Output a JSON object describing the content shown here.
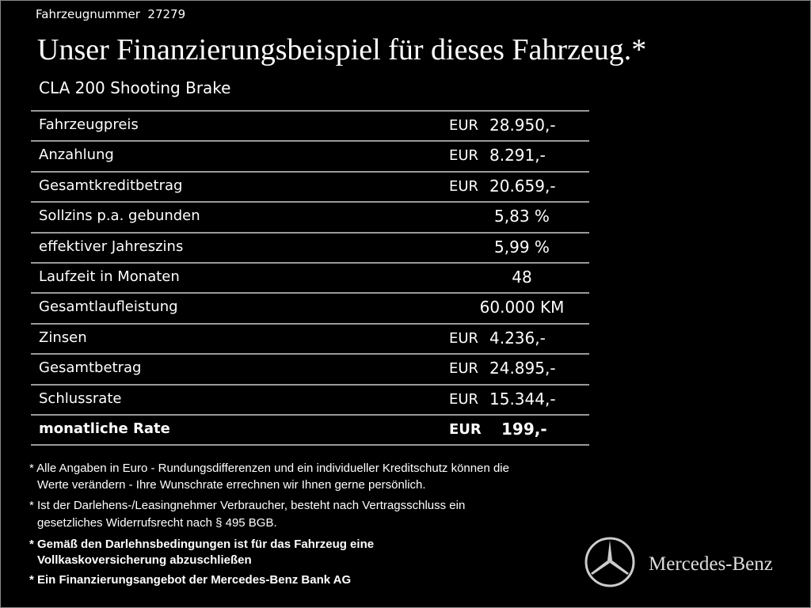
{
  "header": {
    "vehicle_number": "Fahrzeugnummer  27279",
    "title": "Unser Finanzierungsbeispiel für dieses Fahrzeug.*",
    "model": "CLA 200 Shooting Brake"
  },
  "table": {
    "rows": [
      {
        "label": "Fahrzeugpreis",
        "currency": "EUR",
        "value": "28.950,-"
      },
      {
        "label": "Anzahlung",
        "currency": "EUR",
        "value": "8.291,-"
      },
      {
        "label": "Gesamtkreditbetrag",
        "currency": "EUR",
        "value": "20.659,-"
      },
      {
        "label": "Sollzins p.a. gebunden",
        "value": "5,83 %"
      },
      {
        "label": "effektiver Jahreszins",
        "value": "5,99 %"
      },
      {
        "label": "Laufzeit in Monaten",
        "value": "48"
      },
      {
        "label": "Gesamtlaufleistung",
        "value": "60.000 KM"
      },
      {
        "label": "Zinsen",
        "currency": "EUR",
        "value": "4.236,-"
      },
      {
        "label": "Gesamtbetrag",
        "currency": "EUR",
        "value": "24.895,-"
      },
      {
        "label": "Schlussrate",
        "currency": "EUR",
        "value": "15.344,-"
      },
      {
        "label": "monatliche Rate",
        "currency": "EUR",
        "value": "199,-"
      }
    ]
  },
  "notes": [
    {
      "lines": [
        "* Alle Angaben in Euro - Rundungsdifferenzen und ein individueller Kreditschutz können die",
        "Werte verändern - Ihre Wunschrate errechnen wir Ihnen gerne persönlich."
      ]
    },
    {
      "lines": [
        "* Ist der Darlehens-/Leasingnehmer Verbraucher, besteht nach Vertragsschluss ein",
        "gesetzliches Widerrufsrecht nach § 495 BGB."
      ]
    },
    {
      "lines": [
        "* Gemäß den Darlehnsbedingungen ist für das Fahrzeug eine",
        "Vollkaskoversicherung abzuschließen"
      ]
    },
    {
      "lines": [
        "* Ein Finanzierungsangebot der Mercedes-Benz Bank AG"
      ]
    }
  ],
  "brand": "Mercedes-Benz"
}
